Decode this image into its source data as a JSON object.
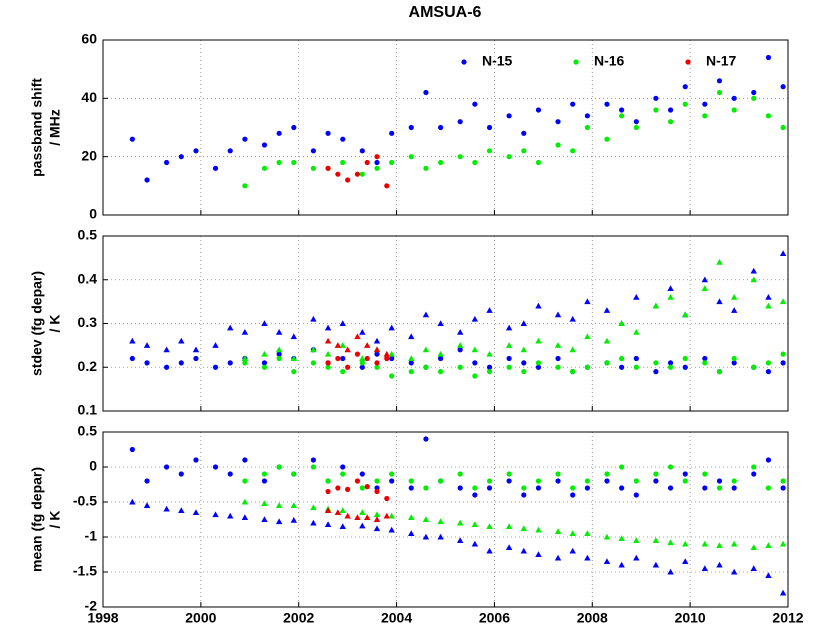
{
  "chart_data": [
    {
      "type": "scatter",
      "title": "AMSUA-6",
      "ylabel": [
        "passband shift",
        "/ MHz"
      ],
      "xlim": [
        1998,
        2012
      ],
      "ylim": [
        0,
        60
      ],
      "xticks": [
        1998,
        2000,
        2002,
        2004,
        2006,
        2008,
        2010,
        2012
      ],
      "xticklabels": false,
      "yticks": [
        0,
        20,
        40,
        60
      ],
      "grid": true,
      "legend": "upper right",
      "series": [
        {
          "name": "N-15",
          "color": "#0000ff",
          "marker": "circle",
          "x": [
            1998.6,
            1998.9,
            1999.3,
            1999.6,
            1999.9,
            2000.3,
            2000.6,
            2000.9,
            2001.3,
            2001.6,
            2001.9,
            2002.3,
            2002.6,
            2002.9,
            2003.3,
            2003.6,
            2003.9,
            2004.3,
            2004.6,
            2004.9,
            2005.3,
            2005.6,
            2005.9,
            2006.3,
            2006.6,
            2006.9,
            2007.3,
            2007.6,
            2007.9,
            2008.3,
            2008.6,
            2008.9,
            2009.3,
            2009.6,
            2009.9,
            2010.3,
            2010.6,
            2010.9,
            2011.3,
            2011.6,
            2011.9
          ],
          "values": [
            26,
            12,
            18,
            20,
            22,
            16,
            22,
            26,
            24,
            28,
            30,
            22,
            28,
            26,
            22,
            18,
            28,
            30,
            42,
            30,
            32,
            38,
            30,
            34,
            28,
            36,
            32,
            38,
            34,
            38,
            36,
            32,
            40,
            36,
            44,
            38,
            46,
            40,
            42,
            54,
            44
          ]
        },
        {
          "name": "N-16",
          "color": "#00ee00",
          "marker": "circle",
          "x": [
            2000.9,
            2001.3,
            2001.6,
            2001.9,
            2002.3,
            2002.6,
            2002.9,
            2003.3,
            2003.6,
            2003.9,
            2004.3,
            2004.6,
            2004.9,
            2005.3,
            2005.6,
            2005.9,
            2006.3,
            2006.6,
            2006.9,
            2007.3,
            2007.6,
            2007.9,
            2008.3,
            2008.6,
            2008.9,
            2009.3,
            2009.6,
            2009.9,
            2010.3,
            2010.6,
            2010.9,
            2011.3,
            2011.6,
            2011.9
          ],
          "values": [
            10,
            16,
            18,
            18,
            16,
            16,
            18,
            14,
            16,
            18,
            20,
            16,
            18,
            20,
            18,
            22,
            20,
            22,
            18,
            24,
            22,
            30,
            26,
            34,
            30,
            36,
            32,
            38,
            34,
            42,
            36,
            40,
            34,
            30
          ]
        },
        {
          "name": "N-17",
          "color": "#ee0000",
          "marker": "circle",
          "x": [
            2002.6,
            2002.8,
            2003.0,
            2003.2,
            2003.4,
            2003.6,
            2003.8
          ],
          "values": [
            16,
            14,
            12,
            14,
            18,
            20,
            10
          ]
        }
      ]
    },
    {
      "type": "scatter",
      "ylabel": [
        "stdev (fg depar)",
        "/ K"
      ],
      "xlim": [
        1998,
        2012
      ],
      "ylim": [
        0.1,
        0.5
      ],
      "xticks": [
        1998,
        2000,
        2002,
        2004,
        2006,
        2008,
        2010,
        2012
      ],
      "xticklabels": false,
      "yticks": [
        0.1,
        0.2,
        0.3,
        0.4,
        0.5
      ],
      "grid": true,
      "series": [
        {
          "color": "#0000ff",
          "marker": "circle",
          "x": [
            1998.6,
            1998.9,
            1999.3,
            1999.6,
            1999.9,
            2000.3,
            2000.6,
            2000.9,
            2001.3,
            2001.6,
            2001.9,
            2002.3,
            2002.6,
            2002.9,
            2003.3,
            2003.6,
            2003.9,
            2004.3,
            2004.6,
            2004.9,
            2005.3,
            2005.6,
            2005.9,
            2006.3,
            2006.6,
            2006.9,
            2007.3,
            2007.6,
            2007.9,
            2008.3,
            2008.6,
            2008.9,
            2009.3,
            2009.6,
            2009.9,
            2010.3,
            2010.6,
            2010.9,
            2011.3,
            2011.6,
            2011.9
          ],
          "values": [
            0.22,
            0.21,
            0.2,
            0.21,
            0.22,
            0.2,
            0.21,
            0.22,
            0.21,
            0.23,
            0.22,
            0.24,
            0.21,
            0.22,
            0.2,
            0.23,
            0.22,
            0.21,
            0.2,
            0.22,
            0.24,
            0.21,
            0.2,
            0.22,
            0.21,
            0.2,
            0.22,
            0.19,
            0.2,
            0.21,
            0.2,
            0.22,
            0.19,
            0.21,
            0.2,
            0.22,
            0.19,
            0.21,
            0.2,
            0.19,
            0.21
          ]
        },
        {
          "color": "#0000ff",
          "marker": "triangle",
          "x": [
            1998.6,
            1998.9,
            1999.3,
            1999.6,
            1999.9,
            2000.3,
            2000.6,
            2000.9,
            2001.3,
            2001.6,
            2001.9,
            2002.3,
            2002.6,
            2002.9,
            2003.3,
            2003.6,
            2003.9,
            2004.3,
            2004.6,
            2004.9,
            2005.3,
            2005.6,
            2005.9,
            2006.3,
            2006.6,
            2006.9,
            2007.3,
            2007.6,
            2007.9,
            2008.3,
            2008.6,
            2008.9,
            2009.3,
            2009.6,
            2009.9,
            2010.3,
            2010.6,
            2010.9,
            2011.3,
            2011.6,
            2011.9
          ],
          "values": [
            0.26,
            0.25,
            0.24,
            0.26,
            0.24,
            0.25,
            0.29,
            0.28,
            0.3,
            0.28,
            0.27,
            0.31,
            0.29,
            0.3,
            0.28,
            0.26,
            0.29,
            0.27,
            0.32,
            0.3,
            0.28,
            0.31,
            0.33,
            0.29,
            0.3,
            0.34,
            0.32,
            0.31,
            0.35,
            0.33,
            0.3,
            0.36,
            0.34,
            0.38,
            0.32,
            0.4,
            0.35,
            0.33,
            0.42,
            0.36,
            0.46
          ]
        },
        {
          "color": "#00ee00",
          "marker": "circle",
          "x": [
            2000.9,
            2001.3,
            2001.6,
            2001.9,
            2002.3,
            2002.6,
            2002.9,
            2003.3,
            2003.6,
            2003.9,
            2004.3,
            2004.6,
            2004.9,
            2005.3,
            2005.6,
            2005.9,
            2006.3,
            2006.6,
            2006.9,
            2007.3,
            2007.6,
            2007.9,
            2008.3,
            2008.6,
            2008.9,
            2009.3,
            2009.6,
            2009.9,
            2010.3,
            2010.6,
            2010.9,
            2011.3,
            2011.6,
            2011.9
          ],
          "values": [
            0.21,
            0.2,
            0.22,
            0.19,
            0.21,
            0.2,
            0.19,
            0.21,
            0.2,
            0.18,
            0.19,
            0.2,
            0.19,
            0.2,
            0.18,
            0.19,
            0.2,
            0.19,
            0.21,
            0.2,
            0.19,
            0.2,
            0.21,
            0.22,
            0.2,
            0.21,
            0.2,
            0.22,
            0.21,
            0.19,
            0.22,
            0.2,
            0.21,
            0.23
          ]
        },
        {
          "color": "#00ee00",
          "marker": "triangle",
          "x": [
            2000.9,
            2001.3,
            2001.6,
            2001.9,
            2002.3,
            2002.6,
            2002.9,
            2003.3,
            2003.6,
            2003.9,
            2004.3,
            2004.6,
            2004.9,
            2005.3,
            2005.6,
            2005.9,
            2006.3,
            2006.6,
            2006.9,
            2007.3,
            2007.6,
            2007.9,
            2008.3,
            2008.6,
            2008.9,
            2009.3,
            2009.6,
            2009.9,
            2010.3,
            2010.6,
            2010.9,
            2011.3,
            2011.6,
            2011.9
          ],
          "values": [
            0.22,
            0.23,
            0.24,
            0.22,
            0.24,
            0.23,
            0.25,
            0.22,
            0.24,
            0.23,
            0.22,
            0.24,
            0.23,
            0.25,
            0.24,
            0.23,
            0.25,
            0.24,
            0.26,
            0.25,
            0.24,
            0.27,
            0.26,
            0.3,
            0.28,
            0.34,
            0.36,
            0.32,
            0.38,
            0.44,
            0.36,
            0.4,
            0.34,
            0.35
          ]
        },
        {
          "color": "#ee0000",
          "marker": "circle",
          "x": [
            2002.6,
            2002.8,
            2003.0,
            2003.2,
            2003.4,
            2003.6,
            2003.8
          ],
          "values": [
            0.21,
            0.22,
            0.2,
            0.23,
            0.22,
            0.21,
            0.22
          ]
        },
        {
          "color": "#ee0000",
          "marker": "triangle",
          "x": [
            2002.6,
            2002.8,
            2003.0,
            2003.2,
            2003.4,
            2003.6,
            2003.8
          ],
          "values": [
            0.26,
            0.25,
            0.24,
            0.27,
            0.25,
            0.24,
            0.23
          ]
        }
      ]
    },
    {
      "type": "scatter",
      "ylabel": [
        "mean (fg depar)",
        "/ K"
      ],
      "xlim": [
        1998,
        2012
      ],
      "ylim": [
        -2,
        0.5
      ],
      "xticks": [
        1998,
        2000,
        2002,
        2004,
        2006,
        2008,
        2010,
        2012
      ],
      "xticklabels": true,
      "yticks": [
        -2,
        -1.5,
        -1,
        -0.5,
        0,
        0.5
      ],
      "grid": true,
      "series": [
        {
          "color": "#0000ff",
          "marker": "circle",
          "x": [
            1998.6,
            1998.9,
            1999.3,
            1999.6,
            1999.9,
            2000.3,
            2000.6,
            2000.9,
            2001.3,
            2001.6,
            2001.9,
            2002.3,
            2002.6,
            2002.9,
            2003.3,
            2003.6,
            2003.9,
            2004.3,
            2004.6,
            2004.9,
            2005.3,
            2005.6,
            2005.9,
            2006.3,
            2006.6,
            2006.9,
            2007.3,
            2007.6,
            2007.9,
            2008.3,
            2008.6,
            2008.9,
            2009.3,
            2009.6,
            2009.9,
            2010.3,
            2010.6,
            2010.9,
            2011.3,
            2011.6,
            2011.9
          ],
          "values": [
            0.25,
            -0.2,
            0,
            -0.1,
            0.1,
            0,
            -0.1,
            0.1,
            -0.2,
            0,
            -0.1,
            0.1,
            -0.2,
            0,
            -0.1,
            -0.3,
            -0.2,
            -0.3,
            0.4,
            -0.2,
            -0.3,
            -0.4,
            -0.3,
            -0.2,
            -0.4,
            -0.3,
            -0.2,
            -0.4,
            -0.3,
            -0.2,
            -0.3,
            -0.4,
            -0.2,
            -0.3,
            -0.1,
            -0.3,
            -0.2,
            -0.3,
            -0.1,
            0.1,
            -0.3
          ]
        },
        {
          "color": "#0000ff",
          "marker": "triangle",
          "x": [
            1998.6,
            1998.9,
            1999.3,
            1999.6,
            1999.9,
            2000.3,
            2000.6,
            2000.9,
            2001.3,
            2001.6,
            2001.9,
            2002.3,
            2002.6,
            2002.9,
            2003.3,
            2003.6,
            2003.9,
            2004.3,
            2004.6,
            2004.9,
            2005.3,
            2005.6,
            2005.9,
            2006.3,
            2006.6,
            2006.9,
            2007.3,
            2007.6,
            2007.9,
            2008.3,
            2008.6,
            2008.9,
            2009.3,
            2009.6,
            2009.9,
            2010.3,
            2010.6,
            2010.9,
            2011.3,
            2011.6,
            2011.9
          ],
          "values": [
            -0.5,
            -0.55,
            -0.6,
            -0.62,
            -0.65,
            -0.68,
            -0.7,
            -0.72,
            -0.75,
            -0.78,
            -0.76,
            -0.8,
            -0.82,
            -0.85,
            -0.84,
            -0.88,
            -0.9,
            -0.95,
            -1,
            -1,
            -1.05,
            -1.1,
            -1.2,
            -1.15,
            -1.2,
            -1.25,
            -1.3,
            -1.2,
            -1.3,
            -1.35,
            -1.4,
            -1.3,
            -1.4,
            -1.5,
            -1.35,
            -1.45,
            -1.4,
            -1.5,
            -1.45,
            -1.55,
            -1.8
          ]
        },
        {
          "color": "#00ee00",
          "marker": "circle",
          "x": [
            2000.9,
            2001.3,
            2001.6,
            2001.9,
            2002.3,
            2002.6,
            2002.9,
            2003.3,
            2003.6,
            2003.9,
            2004.3,
            2004.6,
            2004.9,
            2005.3,
            2005.6,
            2005.9,
            2006.3,
            2006.6,
            2006.9,
            2007.3,
            2007.6,
            2007.9,
            2008.3,
            2008.6,
            2008.9,
            2009.3,
            2009.6,
            2009.9,
            2010.3,
            2010.6,
            2010.9,
            2011.3,
            2011.6,
            2011.9
          ],
          "values": [
            -0.2,
            -0.1,
            0,
            -0.1,
            0,
            -0.2,
            -0.1,
            -0.3,
            -0.2,
            -0.1,
            -0.2,
            -0.3,
            -0.2,
            -0.1,
            -0.3,
            -0.2,
            -0.1,
            -0.3,
            -0.2,
            -0.1,
            -0.3,
            -0.2,
            -0.1,
            0,
            -0.2,
            -0.1,
            0,
            -0.2,
            -0.1,
            -0.3,
            -0.2,
            0,
            -0.3,
            -0.2
          ]
        },
        {
          "color": "#00ee00",
          "marker": "triangle",
          "x": [
            2000.9,
            2001.3,
            2001.6,
            2001.9,
            2002.3,
            2002.6,
            2002.9,
            2003.3,
            2003.6,
            2003.9,
            2004.3,
            2004.6,
            2004.9,
            2005.3,
            2005.6,
            2005.9,
            2006.3,
            2006.6,
            2006.9,
            2007.3,
            2007.6,
            2007.9,
            2008.3,
            2008.6,
            2008.9,
            2009.3,
            2009.6,
            2009.9,
            2010.3,
            2010.6,
            2010.9,
            2011.3,
            2011.6,
            2011.9
          ],
          "values": [
            -0.5,
            -0.52,
            -0.55,
            -0.55,
            -0.58,
            -0.6,
            -0.62,
            -0.65,
            -0.68,
            -0.7,
            -0.72,
            -0.75,
            -0.78,
            -0.8,
            -0.82,
            -0.85,
            -0.85,
            -0.88,
            -0.9,
            -0.92,
            -0.95,
            -0.95,
            -1,
            -1.02,
            -1.05,
            -1.05,
            -1.08,
            -1.1,
            -1.1,
            -1.12,
            -1.1,
            -1.15,
            -1.12,
            -1.1
          ]
        },
        {
          "color": "#ee0000",
          "marker": "circle",
          "x": [
            2002.6,
            2002.8,
            2003.0,
            2003.2,
            2003.4,
            2003.6,
            2003.8
          ],
          "values": [
            -0.35,
            -0.3,
            -0.32,
            -0.2,
            -0.28,
            -0.35,
            -0.45
          ]
        },
        {
          "color": "#ee0000",
          "marker": "triangle",
          "x": [
            2002.6,
            2002.8,
            2003.0,
            2003.2,
            2003.4,
            2003.6,
            2003.8
          ],
          "values": [
            -0.62,
            -0.65,
            -0.7,
            -0.72,
            -0.72,
            -0.75,
            -0.7
          ]
        }
      ]
    }
  ]
}
